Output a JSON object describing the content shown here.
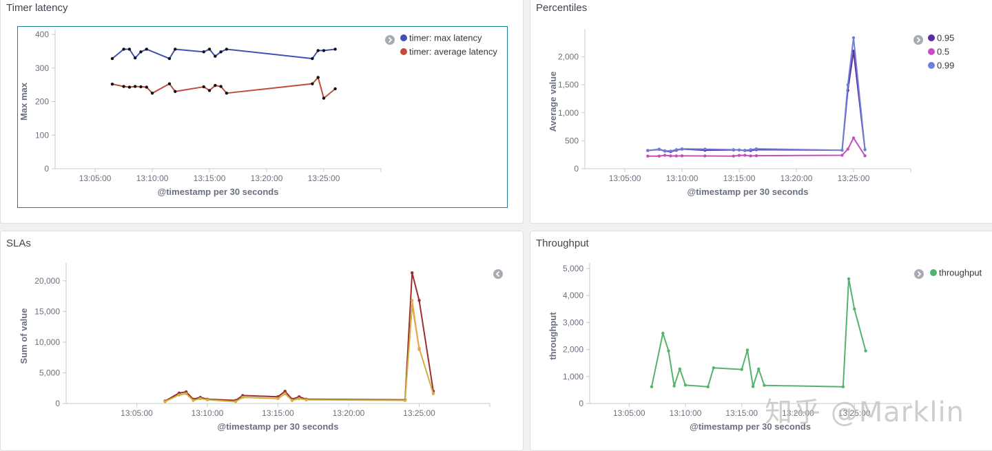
{
  "dashboard": {
    "watermark": "知乎 @Marklin"
  },
  "chart_data": [
    {
      "type": "line",
      "title": "Timer latency",
      "xlabel": "@timestamp per 30 seconds",
      "ylabel": "Max max",
      "ylim": [
        0,
        400
      ],
      "yticks": [
        "0",
        "100",
        "200",
        "300",
        "400"
      ],
      "xticks": [
        "13:05:00",
        "13:10:00",
        "13:15:00",
        "13:20:00",
        "13:25:00"
      ],
      "xlim": [
        "13:01:30",
        "13:30:00"
      ],
      "legend_position": "top-right",
      "series": [
        {
          "name": "timer: max latency",
          "color": "#3f51b5",
          "x": [
            "13:06:30",
            "13:07:30",
            "13:08:00",
            "13:08:30",
            "13:09:00",
            "13:09:30",
            "13:11:30",
            "13:12:00",
            "13:14:30",
            "13:15:00",
            "13:15:30",
            "13:16:00",
            "13:16:30",
            "13:24:00",
            "13:24:30",
            "13:25:00",
            "13:26:00"
          ],
          "values": [
            328,
            356,
            356,
            330,
            348,
            356,
            328,
            356,
            348,
            356,
            335,
            348,
            356,
            328,
            352,
            352,
            356
          ]
        },
        {
          "name": "timer: average latency",
          "color": "#bf4b3c",
          "x": [
            "13:06:30",
            "13:07:30",
            "13:08:00",
            "13:08:30",
            "13:09:00",
            "13:09:30",
            "13:10:00",
            "13:11:30",
            "13:12:00",
            "13:14:30",
            "13:15:00",
            "13:15:30",
            "13:16:00",
            "13:16:30",
            "13:24:00",
            "13:24:30",
            "13:25:00",
            "13:26:00"
          ],
          "values": [
            252,
            245,
            243,
            245,
            244,
            243,
            225,
            253,
            230,
            244,
            233,
            248,
            245,
            225,
            253,
            272,
            210,
            238
          ]
        }
      ]
    },
    {
      "type": "line",
      "title": "Percentiles",
      "xlabel": "@timestamp per 30 seconds",
      "ylabel": "Average value",
      "ylim": [
        0,
        2400
      ],
      "yticks": [
        "0",
        "500",
        "1,000",
        "1,500",
        "2,000"
      ],
      "xticks": [
        "13:05:00",
        "13:10:00",
        "13:15:00",
        "13:20:00",
        "13:25:00"
      ],
      "xlim": [
        "13:01:30",
        "13:30:00"
      ],
      "legend_position": "top-right",
      "series": [
        {
          "name": "0.95",
          "color": "#5a2ca0",
          "x": [
            "13:07:00",
            "13:08:00",
            "13:08:30",
            "13:09:00",
            "13:09:30",
            "13:10:00",
            "13:12:00",
            "13:14:30",
            "13:15:00",
            "13:15:30",
            "13:16:00",
            "13:16:30",
            "13:24:00",
            "13:24:30",
            "13:25:00",
            "13:26:00"
          ],
          "values": [
            325,
            345,
            315,
            305,
            330,
            350,
            330,
            335,
            335,
            325,
            325,
            340,
            330,
            1400,
            2100,
            340
          ]
        },
        {
          "name": "0.5",
          "color": "#c34fbf",
          "x": [
            "13:07:00",
            "13:08:00",
            "13:08:30",
            "13:09:00",
            "13:09:30",
            "13:10:00",
            "13:12:00",
            "13:14:30",
            "13:15:00",
            "13:15:30",
            "13:16:00",
            "13:16:30",
            "13:24:00",
            "13:24:30",
            "13:25:00",
            "13:26:00"
          ],
          "values": [
            225,
            225,
            240,
            228,
            228,
            230,
            228,
            225,
            238,
            240,
            228,
            232,
            240,
            350,
            550,
            230
          ]
        },
        {
          "name": "0.99",
          "color": "#6f7fd6",
          "x": [
            "13:07:00",
            "13:08:00",
            "13:08:30",
            "13:09:00",
            "13:09:30",
            "13:10:00",
            "13:12:00",
            "13:14:30",
            "13:15:00",
            "13:15:30",
            "13:16:00",
            "13:16:30",
            "13:24:00",
            "13:24:30",
            "13:25:00",
            "13:26:00"
          ],
          "values": [
            325,
            350,
            320,
            315,
            340,
            355,
            350,
            340,
            335,
            330,
            340,
            355,
            330,
            1500,
            2340,
            340
          ]
        }
      ]
    },
    {
      "type": "line",
      "title": "SLAs",
      "xlabel": "@timestamp per 30 seconds",
      "ylabel": "Sum of value",
      "ylim": [
        0,
        22000
      ],
      "yticks": [
        "0",
        "5,000",
        "10,000",
        "15,000",
        "20,000"
      ],
      "xticks": [
        "13:05:00",
        "13:10:00",
        "13:15:00",
        "13:20:00",
        "13:25:00"
      ],
      "xlim": [
        "13:00:00",
        "13:30:00"
      ],
      "legend_position": "top-right",
      "series": [
        {
          "name": "",
          "color": "#9a2e2e",
          "x": [
            "13:07:00",
            "13:08:00",
            "13:08:30",
            "13:09:00",
            "13:09:30",
            "13:10:00",
            "13:12:00",
            "13:12:30",
            "13:15:00",
            "13:15:30",
            "13:16:00",
            "13:16:30",
            "13:17:00",
            "13:24:00",
            "13:24:30",
            "13:25:00",
            "13:26:00"
          ],
          "values": [
            400,
            1700,
            1900,
            700,
            1000,
            700,
            500,
            1300,
            1100,
            2000,
            700,
            1100,
            700,
            600,
            21300,
            16800,
            2000
          ]
        },
        {
          "name": "",
          "color": "#d1b040",
          "x": [
            "13:07:00",
            "13:08:00",
            "13:08:30",
            "13:09:00",
            "13:09:30",
            "13:10:00",
            "13:12:00",
            "13:12:30",
            "13:15:00",
            "13:15:30",
            "13:16:00",
            "13:16:30",
            "13:17:00",
            "13:24:00",
            "13:24:30",
            "13:25:00",
            "13:26:00"
          ],
          "values": [
            300,
            1400,
            1600,
            500,
            800,
            600,
            300,
            1000,
            800,
            1600,
            500,
            800,
            600,
            500,
            16000,
            9000,
            1600
          ]
        },
        {
          "name": "",
          "color": "#e8a74f",
          "x": [
            "13:24:30",
            "13:25:00"
          ],
          "values": [
            16800,
            8800
          ]
        }
      ]
    },
    {
      "type": "line",
      "title": "Throughput",
      "xlabel": "@timestamp per 30 seconds",
      "ylabel": "throughput",
      "ylim": [
        0,
        5000
      ],
      "yticks": [
        "0",
        "1,000",
        "2,000",
        "3,000",
        "4,000",
        "5,000"
      ],
      "xticks": [
        "13:05:00",
        "13:10:00",
        "13:15:00",
        "13:20:00",
        "13:25:00"
      ],
      "xlim": [
        "13:01:30",
        "13:30:00"
      ],
      "legend_position": "top-right",
      "series": [
        {
          "name": "throughput",
          "color": "#54b36b",
          "x": [
            "13:07:00",
            "13:08:00",
            "13:08:30",
            "13:09:00",
            "13:09:30",
            "13:10:00",
            "13:12:00",
            "13:12:30",
            "13:15:00",
            "13:15:30",
            "13:16:00",
            "13:16:30",
            "13:17:00",
            "13:24:00",
            "13:24:30",
            "13:25:00",
            "13:26:00"
          ],
          "values": [
            620,
            2600,
            1950,
            650,
            1280,
            680,
            620,
            1320,
            1260,
            1980,
            630,
            1280,
            670,
            620,
            4620,
            3500,
            1950
          ]
        }
      ]
    }
  ]
}
